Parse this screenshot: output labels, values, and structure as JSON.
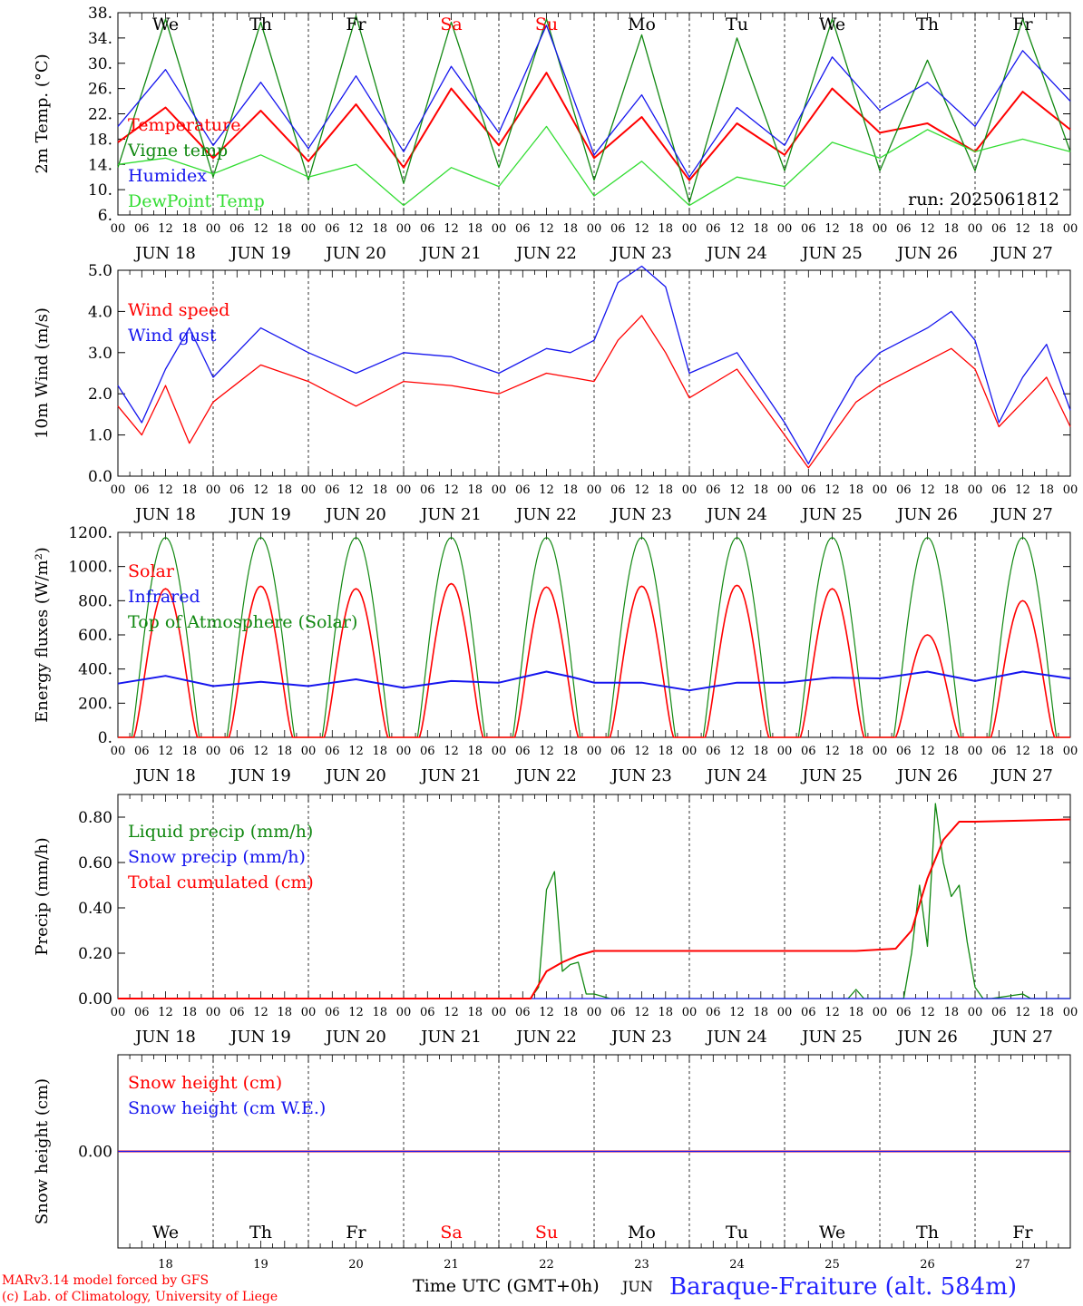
{
  "colors": {
    "red": "#ff0000",
    "green": "#118811",
    "blue": "#1515ee",
    "lightgreen": "#33dd33",
    "ink": "#000000",
    "title_blue": "#2323ff"
  },
  "run_label": "run: 2025061812",
  "footer": {
    "model": "MARv3.14 model forced by GFS",
    "lab": "(c) Lab. of Climatology, University of Liege",
    "time_label": "Time UTC (GMT+0h)",
    "month": "JUN",
    "station": "Baraque-Fraiture (alt. 584m)"
  },
  "days": [
    {
      "dow": "We",
      "date": "JUN 18",
      "num": "18",
      "weekend": false
    },
    {
      "dow": "Th",
      "date": "JUN 19",
      "num": "19",
      "weekend": false
    },
    {
      "dow": "Fr",
      "date": "JUN 20",
      "num": "20",
      "weekend": false
    },
    {
      "dow": "Sa",
      "date": "JUN 21",
      "num": "21",
      "weekend": true
    },
    {
      "dow": "Su",
      "date": "JUN 22",
      "num": "22",
      "weekend": true
    },
    {
      "dow": "Mo",
      "date": "JUN 23",
      "num": "23",
      "weekend": false
    },
    {
      "dow": "Tu",
      "date": "JUN 24",
      "num": "24",
      "weekend": false
    },
    {
      "dow": "We",
      "date": "JUN 25",
      "num": "25",
      "weekend": false
    },
    {
      "dow": "Th",
      "date": "JUN 26",
      "num": "26",
      "weekend": false
    },
    {
      "dow": "Fr",
      "date": "JUN 27",
      "num": "27",
      "weekend": false
    }
  ],
  "hour_ticks": [
    "00",
    "06",
    "12",
    "18"
  ],
  "chart_data": [
    {
      "type": "line",
      "ylabel": "2m Temp. (°C)",
      "ylim": [
        6,
        38
      ],
      "yticks": [
        "6.",
        "10.",
        "14.",
        "18.",
        "22.",
        "26.",
        "30.",
        "34.",
        "38."
      ],
      "x_unit": "hours since JUN 18 00 UTC",
      "legend": [
        "Temperature",
        "Vigne temp",
        "Humidex",
        "DewPoint Temp"
      ],
      "series": [
        {
          "name": "Temperature",
          "color": "red",
          "x": [
            0,
            12,
            24,
            36,
            48,
            60,
            72,
            84,
            96,
            108,
            120,
            132,
            144,
            156,
            168,
            180,
            192,
            204,
            216,
            228,
            240
          ],
          "values": [
            17.5,
            23,
            15,
            22.5,
            14.5,
            23.5,
            13.5,
            26,
            17,
            28.5,
            15,
            21.5,
            11.5,
            20.5,
            15.5,
            26,
            19,
            20.5,
            16,
            25.5,
            19.5
          ]
        },
        {
          "name": "Vigne temp",
          "color": "green",
          "x": [
            0,
            12,
            24,
            36,
            48,
            60,
            72,
            84,
            96,
            108,
            120,
            132,
            144,
            156,
            168,
            180,
            192,
            204,
            216,
            228,
            240
          ],
          "values": [
            13.5,
            37,
            12,
            36.5,
            11.5,
            37.5,
            11,
            36.5,
            13.5,
            37,
            11.5,
            34.5,
            8,
            34,
            13,
            37,
            13,
            30.5,
            13,
            37,
            16
          ]
        },
        {
          "name": "Humidex",
          "color": "blue",
          "x": [
            0,
            12,
            24,
            36,
            48,
            60,
            72,
            84,
            96,
            108,
            120,
            132,
            144,
            156,
            168,
            180,
            192,
            204,
            216,
            228,
            240
          ],
          "values": [
            20,
            29,
            17,
            27,
            16.5,
            28,
            16,
            29.5,
            19,
            36,
            15.5,
            25,
            12,
            23,
            17,
            31,
            22.5,
            27,
            20,
            32,
            24
          ]
        },
        {
          "name": "DewPoint Temp",
          "color": "lightgreen",
          "x": [
            0,
            12,
            24,
            36,
            48,
            60,
            72,
            84,
            96,
            108,
            120,
            132,
            144,
            156,
            168,
            180,
            192,
            204,
            216,
            228,
            240
          ],
          "values": [
            14,
            15,
            12.5,
            15.5,
            12,
            14,
            7.5,
            13.5,
            10.5,
            20,
            9,
            14.5,
            7.5,
            12,
            10.5,
            17.5,
            15,
            19.5,
            16,
            18,
            16
          ]
        }
      ]
    },
    {
      "type": "line",
      "ylabel": "10m Wind (m/s)",
      "ylim": [
        0,
        5
      ],
      "yticks": [
        "0.0",
        "1.0",
        "2.0",
        "3.0",
        "4.0",
        "5.0"
      ],
      "x_unit": "hours since JUN 18 00 UTC",
      "legend": [
        "Wind speed",
        "Wind gust"
      ],
      "series": [
        {
          "name": "Wind speed",
          "color": "red",
          "x": [
            0,
            6,
            12,
            18,
            24,
            36,
            48,
            60,
            72,
            84,
            96,
            108,
            114,
            120,
            126,
            132,
            138,
            144,
            156,
            168,
            174,
            180,
            186,
            192,
            204,
            210,
            216,
            222,
            228,
            234,
            240
          ],
          "values": [
            1.7,
            1.0,
            2.2,
            0.8,
            1.8,
            2.7,
            2.3,
            1.7,
            2.3,
            2.2,
            2.0,
            2.5,
            2.4,
            2.3,
            3.3,
            3.9,
            3.0,
            1.9,
            2.6,
            1.0,
            0.2,
            1.0,
            1.8,
            2.2,
            2.8,
            3.1,
            2.6,
            1.2,
            1.8,
            2.4,
            1.2
          ]
        },
        {
          "name": "Wind gust",
          "color": "blue",
          "x": [
            0,
            6,
            12,
            18,
            24,
            36,
            48,
            60,
            72,
            84,
            96,
            108,
            114,
            120,
            126,
            132,
            138,
            144,
            156,
            168,
            174,
            180,
            186,
            192,
            204,
            210,
            216,
            222,
            228,
            234,
            240
          ],
          "values": [
            2.2,
            1.3,
            2.6,
            3.6,
            2.4,
            3.6,
            3.0,
            2.5,
            3.0,
            2.9,
            2.5,
            3.1,
            3.0,
            3.3,
            4.7,
            5.1,
            4.6,
            2.5,
            3.0,
            1.3,
            0.3,
            1.4,
            2.4,
            3.0,
            3.6,
            4.0,
            3.3,
            1.3,
            2.4,
            3.2,
            1.6
          ]
        }
      ]
    },
    {
      "type": "line",
      "ylabel": "Energy fluxes (W/m²)",
      "ylim": [
        0,
        1200
      ],
      "yticks": [
        "0.",
        "200.",
        "400.",
        "600.",
        "800.",
        "1000.",
        "1200."
      ],
      "x_unit": "hours since JUN 18 00 UTC",
      "legend": [
        "Solar",
        "Infrared",
        "Top of Atmosphere (Solar)"
      ],
      "solar_daily_peak": [
        870,
        885,
        870,
        900,
        880,
        885,
        890,
        870,
        600,
        800
      ],
      "toa_daily_peak": 1170,
      "series": [
        {
          "name": "Infrared",
          "color": "blue",
          "x": [
            0,
            12,
            24,
            36,
            48,
            60,
            72,
            84,
            96,
            108,
            114,
            120,
            132,
            144,
            156,
            168,
            180,
            192,
            204,
            216,
            228,
            240
          ],
          "values": [
            315,
            360,
            300,
            325,
            300,
            340,
            290,
            330,
            320,
            385,
            355,
            320,
            320,
            275,
            320,
            320,
            350,
            345,
            385,
            330,
            385,
            345
          ]
        }
      ]
    },
    {
      "type": "line",
      "ylabel": "Precip (mm/h)",
      "ylim": [
        0,
        0.9
      ],
      "yticks": [
        "0.00",
        "0.20",
        "0.40",
        "0.60",
        "0.80"
      ],
      "x_unit": "hours since JUN 18 00 UTC",
      "legend": [
        "Liquid precip (mm/h)",
        "Snow precip (mm/h)",
        "Total cumulated (cm)"
      ],
      "series": [
        {
          "name": "Liquid precip (mm/h)",
          "color": "green",
          "x": [
            0,
            104,
            106,
            108,
            110,
            112,
            114,
            116,
            118,
            120,
            122,
            124,
            184,
            186,
            188,
            198,
            200,
            202,
            204,
            206,
            208,
            210,
            212,
            214,
            216,
            218,
            220,
            228,
            230,
            240
          ],
          "values": [
            0,
            0,
            0.05,
            0.48,
            0.56,
            0.12,
            0.15,
            0.16,
            0.02,
            0.02,
            0.01,
            0,
            0,
            0.04,
            0,
            0,
            0.2,
            0.5,
            0.23,
            0.86,
            0.6,
            0.45,
            0.5,
            0.25,
            0.05,
            0,
            0,
            0.02,
            0,
            0
          ]
        },
        {
          "name": "Snow precip (mm/h)",
          "color": "blue",
          "x": [
            0,
            240
          ],
          "values": [
            0,
            0
          ]
        },
        {
          "name": "Total cumulated (cm)",
          "color": "red",
          "x": [
            0,
            104,
            108,
            112,
            116,
            120,
            186,
            196,
            200,
            204,
            208,
            212,
            216,
            240
          ],
          "values": [
            0,
            0,
            0.12,
            0.16,
            0.19,
            0.21,
            0.21,
            0.22,
            0.3,
            0.53,
            0.7,
            0.78,
            0.78,
            0.79
          ]
        }
      ]
    },
    {
      "type": "line",
      "ylabel": "Snow height (cm)",
      "yticks": [
        "0.00"
      ],
      "x_unit": "hours since JUN 18 00 UTC",
      "legend": [
        "Snow height (cm)",
        "Snow height (cm W.E.)"
      ],
      "series": [
        {
          "name": "Snow height (cm)",
          "color": "red",
          "x": [
            0,
            240
          ],
          "values": [
            0,
            0
          ]
        },
        {
          "name": "Snow height (cm W.E.)",
          "color": "blue",
          "x": [
            0,
            240
          ],
          "values": [
            0,
            0
          ]
        }
      ]
    }
  ]
}
